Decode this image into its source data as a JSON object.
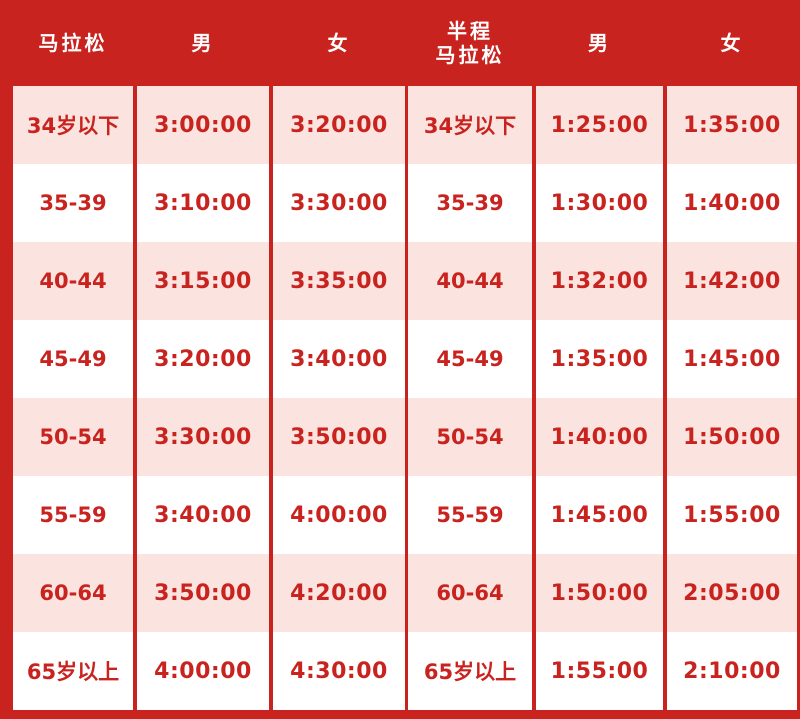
{
  "colors": {
    "background": "#c8231f",
    "row_shaded": "#fbe3df",
    "row_plain": "#ffffff",
    "text_red": "#c8231f",
    "header_text": "#ffffff"
  },
  "marathon": {
    "headers": [
      "马拉松",
      "男",
      "女"
    ],
    "rows": [
      [
        "34岁以下",
        "3:00:00",
        "3:20:00"
      ],
      [
        "35-39",
        "3:10:00",
        "3:30:00"
      ],
      [
        "40-44",
        "3:15:00",
        "3:35:00"
      ],
      [
        "45-49",
        "3:20:00",
        "3:40:00"
      ],
      [
        "50-54",
        "3:30:00",
        "3:50:00"
      ],
      [
        "55-59",
        "3:40:00",
        "4:00:00"
      ],
      [
        "60-64",
        "3:50:00",
        "4:20:00"
      ],
      [
        "65岁以上",
        "4:00:00",
        "4:30:00"
      ]
    ]
  },
  "half_marathon": {
    "header_line1": "半程",
    "header_line2": "马拉松",
    "headers": [
      "男",
      "女"
    ],
    "rows": [
      [
        "34岁以下",
        "1:25:00",
        "1:35:00"
      ],
      [
        "35-39",
        "1:30:00",
        "1:40:00"
      ],
      [
        "40-44",
        "1:32:00",
        "1:42:00"
      ],
      [
        "45-49",
        "1:35:00",
        "1:45:00"
      ],
      [
        "50-54",
        "1:40:00",
        "1:50:00"
      ],
      [
        "55-59",
        "1:45:00",
        "1:55:00"
      ],
      [
        "60-64",
        "1:50:00",
        "2:05:00"
      ],
      [
        "65岁以上",
        "1:55:00",
        "2:10:00"
      ]
    ]
  }
}
